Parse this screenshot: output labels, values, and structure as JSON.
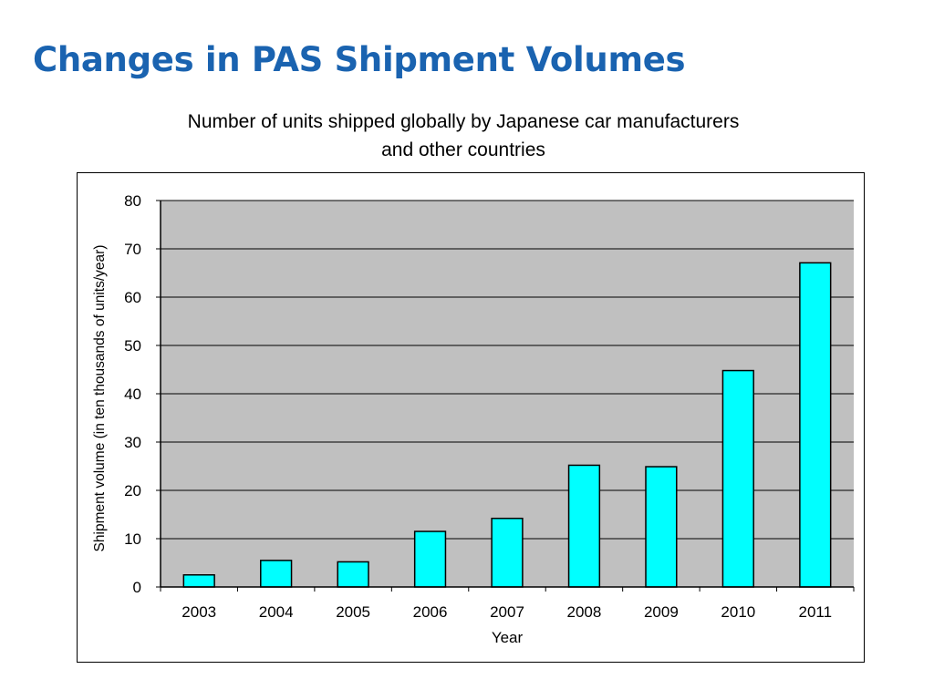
{
  "slide": {
    "title": "Changes in PAS Shipment Volumes"
  },
  "chart_data": {
    "type": "bar",
    "title_lines": [
      "Number of units shipped globally by Japanese car manufacturers",
      "and other countries"
    ],
    "xlabel": "Year",
    "ylabel": "Shipment volume (in ten thousands of units/year)",
    "categories": [
      "2003",
      "2004",
      "2005",
      "2006",
      "2007",
      "2008",
      "2009",
      "2010",
      "2011"
    ],
    "values": [
      2.5,
      5.5,
      5.2,
      11.5,
      14.2,
      25.2,
      24.9,
      44.8,
      67.1
    ],
    "ylim": [
      0,
      80
    ],
    "yticks": [
      0,
      10,
      20,
      30,
      40,
      50,
      60,
      70,
      80
    ],
    "grid": true,
    "legend": "none",
    "colors": {
      "bar_fill": "#00ffff",
      "bar_stroke": "#000000",
      "plot_background": "#c0c0c0",
      "gridline": "#000000"
    }
  }
}
